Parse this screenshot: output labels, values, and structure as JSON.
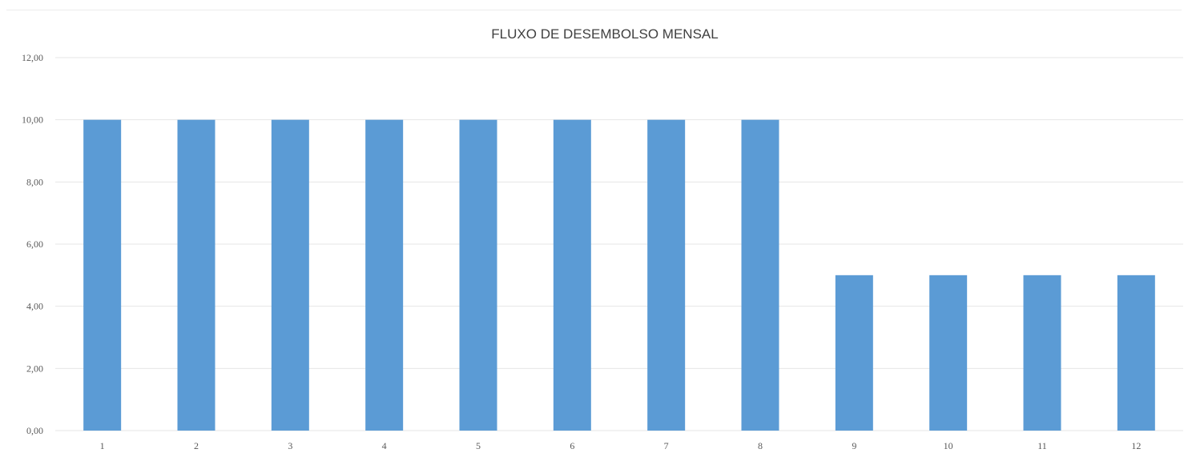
{
  "chart_data": {
    "type": "bar",
    "title": "FLUXO DE DESEMBOLSO MENSAL",
    "xlabel": "",
    "ylabel": "",
    "categories": [
      "1",
      "2",
      "3",
      "4",
      "5",
      "6",
      "7",
      "8",
      "9",
      "10",
      "11",
      "12"
    ],
    "values": [
      10,
      10,
      10,
      10,
      10,
      10,
      10,
      10,
      5,
      5,
      5,
      5
    ],
    "ylim": [
      0,
      12
    ],
    "yticks": [
      "0,00",
      "2,00",
      "4,00",
      "6,00",
      "8,00",
      "10,00",
      "12,00"
    ],
    "grid": true,
    "legend": "none",
    "bar_color": "#5b9bd5"
  }
}
